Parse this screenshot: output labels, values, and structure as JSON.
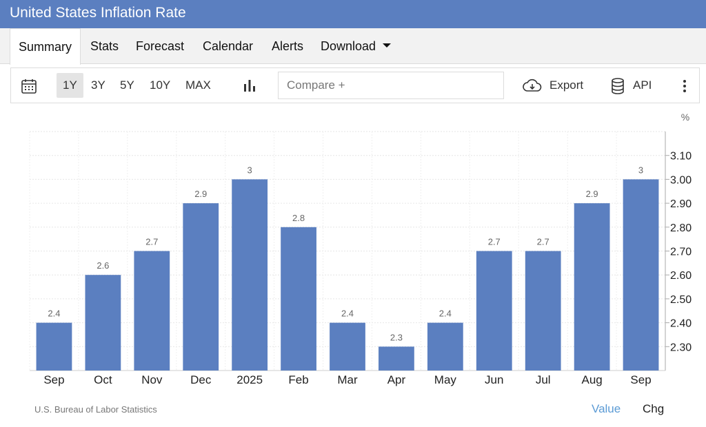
{
  "page": {
    "title": "United States Inflation Rate"
  },
  "tabs": [
    {
      "label": "Summary",
      "active": true
    },
    {
      "label": "Stats"
    },
    {
      "label": "Forecast"
    },
    {
      "label": "Calendar"
    },
    {
      "label": "Alerts"
    },
    {
      "label": "Download",
      "dropdown": true
    }
  ],
  "toolbar": {
    "ranges": [
      "1Y",
      "3Y",
      "5Y",
      "10Y",
      "MAX"
    ],
    "active_range": "1Y",
    "compare_placeholder": "Compare +",
    "export_label": "Export",
    "api_label": "API"
  },
  "colors": {
    "accent": "#5b7fc0",
    "bar": "#5b7fc0",
    "link": "#5b9bd5"
  },
  "icons": {
    "calendar": "calendar-icon",
    "chart_type": "bar-chart-icon",
    "export": "cloud-download-icon",
    "api": "database-icon",
    "more": "more-vertical-icon"
  },
  "chart_data": {
    "type": "bar",
    "unit_label": "%",
    "categories": [
      "Sep",
      "Oct",
      "Nov",
      "Dec",
      "2025",
      "Feb",
      "Mar",
      "Apr",
      "May",
      "Jun",
      "Jul",
      "Aug",
      "Sep"
    ],
    "values": [
      2.4,
      2.6,
      2.7,
      2.9,
      3,
      2.8,
      2.4,
      2.3,
      2.4,
      2.7,
      2.7,
      2.9,
      3
    ],
    "value_labels": [
      "2.4",
      "2.6",
      "2.7",
      "2.9",
      "3",
      "2.8",
      "2.4",
      "2.3",
      "2.4",
      "2.7",
      "2.7",
      "2.9",
      "3"
    ],
    "y_ticks": [
      "2.30",
      "2.40",
      "2.50",
      "2.60",
      "2.70",
      "2.80",
      "2.90",
      "3.00",
      "3.10"
    ],
    "ylim": [
      2.2,
      3.2
    ],
    "y_axis_side": "right",
    "grid": true
  },
  "footer": {
    "source": "U.S. Bureau of Labor Statistics",
    "value_toggle": "Value",
    "chg_toggle": "Chg"
  }
}
